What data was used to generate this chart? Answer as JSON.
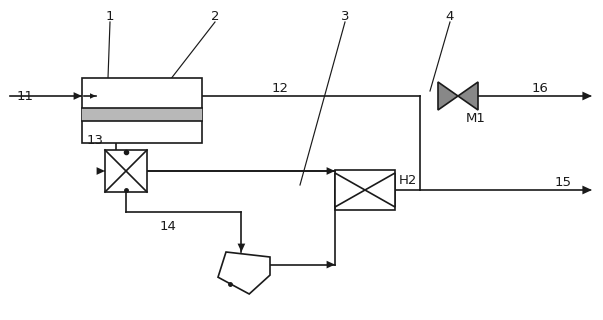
{
  "bg": "#ffffff",
  "lc": "#1a1a1a",
  "gray": "#b8b8b8",
  "fig_w": 6.03,
  "fig_h": 3.2,
  "dpi": 100,
  "lw": 1.2,
  "fs": 9.5
}
